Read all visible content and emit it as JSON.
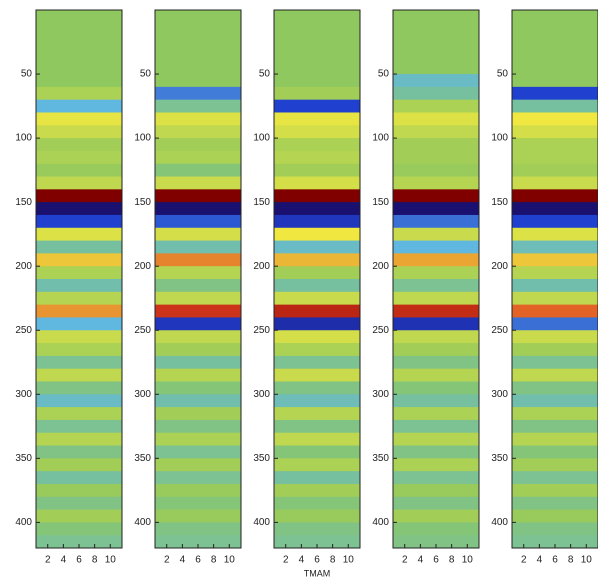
{
  "chart_data": [
    {
      "type": "heatmap",
      "ylim": [
        0,
        420
      ],
      "yticks": [
        50,
        100,
        150,
        200,
        250,
        300,
        350,
        400
      ],
      "xlim": [
        0.5,
        11.5
      ],
      "xticks": [
        2,
        4,
        6,
        8,
        10
      ],
      "zlim": [
        -3,
        3
      ],
      "colormap": [
        "#1a1070",
        "#2040d0",
        "#60b8e0",
        "#8ec85e",
        "#f0e840",
        "#e04020",
        "#800000"
      ],
      "bins": [
        0,
        10,
        20,
        30,
        40,
        50,
        60,
        70,
        80,
        90,
        100,
        110,
        120,
        130,
        140,
        150,
        160,
        170,
        180,
        190,
        200,
        210,
        220,
        230,
        240,
        250,
        260,
        270,
        280,
        290,
        300,
        310,
        320,
        330,
        340,
        350,
        360,
        370,
        380,
        390,
        400,
        410,
        420
      ],
      "z": [
        0,
        0,
        0,
        0,
        0,
        0,
        0.3,
        -1,
        0.9,
        0.6,
        0.2,
        0.3,
        0.1,
        0.5,
        3,
        -3,
        -2,
        0.8,
        -0.5,
        1.2,
        0.3,
        -0.6,
        0.4,
        1.5,
        -1,
        0.6,
        0.3,
        -0.4,
        0.5,
        -0.3,
        -0.8,
        0.3,
        -0.4,
        0.4,
        -0.3,
        0.2,
        -0.5,
        0.1,
        -0.3,
        0.2,
        -0.2,
        -0.4
      ]
    },
    {
      "type": "heatmap",
      "ylim": [
        0,
        420
      ],
      "yticks": [
        50,
        100,
        150,
        200,
        250,
        300,
        350,
        400
      ],
      "xlim": [
        0.5,
        11.5
      ],
      "xticks": [
        2,
        4,
        6,
        8,
        10
      ],
      "zlim": [
        -3,
        3
      ],
      "colormap": [
        "#1a1070",
        "#2040d0",
        "#60b8e0",
        "#8ec85e",
        "#f0e840",
        "#e04020",
        "#800000"
      ],
      "bins": [
        0,
        10,
        20,
        30,
        40,
        50,
        60,
        70,
        80,
        90,
        100,
        110,
        120,
        130,
        140,
        150,
        160,
        170,
        180,
        190,
        200,
        210,
        220,
        230,
        240,
        250,
        260,
        270,
        280,
        290,
        300,
        310,
        320,
        330,
        340,
        350,
        360,
        370,
        380,
        390,
        400,
        410,
        420
      ],
      "z": [
        0,
        0,
        0,
        0,
        0,
        0,
        -1.5,
        -0.4,
        0.8,
        0.5,
        0.2,
        0.3,
        -0.2,
        0.6,
        3,
        -3,
        -1.8,
        0.7,
        -0.6,
        1.6,
        0.4,
        -0.3,
        0.5,
        2.2,
        -2.2,
        0.5,
        0.2,
        -0.5,
        0.4,
        -0.2,
        -0.6,
        0.2,
        -0.3,
        0.3,
        -0.4,
        0.2,
        -0.4,
        0.1,
        -0.2,
        0.1,
        -0.3,
        -0.4
      ]
    },
    {
      "type": "heatmap",
      "ylim": [
        0,
        420
      ],
      "yticks": [
        50,
        100,
        150,
        200,
        250,
        300,
        350,
        400
      ],
      "xlim": [
        0.5,
        11.5
      ],
      "xticks": [
        2,
        4,
        6,
        8,
        10
      ],
      "zlim": [
        -3,
        3
      ],
      "xlabel": "TMAM",
      "colormap": [
        "#1a1070",
        "#2040d0",
        "#60b8e0",
        "#8ec85e",
        "#f0e840",
        "#e04020",
        "#800000"
      ],
      "bins": [
        0,
        10,
        20,
        30,
        40,
        50,
        60,
        70,
        80,
        90,
        100,
        110,
        120,
        130,
        140,
        150,
        160,
        170,
        180,
        190,
        200,
        210,
        220,
        230,
        240,
        250,
        260,
        270,
        280,
        290,
        300,
        310,
        320,
        330,
        340,
        350,
        360,
        370,
        380,
        390,
        400,
        410,
        420
      ],
      "z": [
        0,
        0,
        0,
        0,
        0,
        0,
        0.2,
        -2,
        0.9,
        0.7,
        0.3,
        0.4,
        0.2,
        0.7,
        3,
        -3,
        -2.2,
        1,
        -0.8,
        1.3,
        0.2,
        -0.5,
        0.6,
        2.4,
        -2.4,
        0.7,
        0.3,
        -0.4,
        0.6,
        -0.3,
        -0.7,
        0.4,
        -0.3,
        0.5,
        -0.2,
        0.3,
        -0.5,
        0.2,
        -0.2,
        0.1,
        -0.3,
        -0.4
      ]
    },
    {
      "type": "heatmap",
      "ylim": [
        0,
        420
      ],
      "yticks": [
        50,
        100,
        150,
        200,
        250,
        300,
        350,
        400
      ],
      "xlim": [
        0.5,
        11.5
      ],
      "xticks": [
        2,
        4,
        6,
        8,
        10
      ],
      "zlim": [
        -3,
        3
      ],
      "colormap": [
        "#1a1070",
        "#2040d0",
        "#60b8e0",
        "#8ec85e",
        "#f0e840",
        "#e04020",
        "#800000"
      ],
      "bins": [
        0,
        10,
        20,
        30,
        40,
        50,
        60,
        70,
        80,
        90,
        100,
        110,
        120,
        130,
        140,
        150,
        160,
        170,
        180,
        190,
        200,
        210,
        220,
        230,
        240,
        250,
        260,
        270,
        280,
        290,
        300,
        310,
        320,
        330,
        340,
        350,
        360,
        370,
        380,
        390,
        400,
        410,
        420
      ],
      "z": [
        0,
        0,
        0,
        0,
        0,
        -0.8,
        -0.5,
        0.3,
        0.8,
        0.5,
        0.2,
        0.2,
        0.1,
        0.4,
        3,
        -3,
        -1.6,
        0.6,
        -1,
        1.4,
        0.3,
        -0.4,
        0.5,
        2.3,
        -2.3,
        0.5,
        0.2,
        -0.3,
        0.4,
        -0.2,
        -0.5,
        0.3,
        -0.4,
        0.4,
        -0.3,
        0.3,
        -0.4,
        0.1,
        -0.3,
        0.2,
        -0.2,
        -0.3
      ]
    },
    {
      "type": "heatmap",
      "ylim": [
        0,
        420
      ],
      "yticks": [
        50,
        100,
        150,
        200,
        250,
        300,
        350,
        400
      ],
      "xlim": [
        0.5,
        11.5
      ],
      "xticks": [
        2,
        4,
        6,
        8,
        10
      ],
      "zlim": [
        -3,
        3
      ],
      "colormap": [
        "#1a1070",
        "#2040d0",
        "#60b8e0",
        "#8ec85e",
        "#f0e840",
        "#e04020",
        "#800000"
      ],
      "bins": [
        0,
        10,
        20,
        30,
        40,
        50,
        60,
        70,
        80,
        90,
        100,
        110,
        120,
        130,
        140,
        150,
        160,
        170,
        180,
        190,
        200,
        210,
        220,
        230,
        240,
        250,
        260,
        270,
        280,
        290,
        300,
        310,
        320,
        330,
        340,
        350,
        360,
        370,
        380,
        390,
        400,
        410,
        420
      ],
      "z": [
        0,
        0,
        0,
        0,
        0,
        0,
        -2,
        -0.5,
        1,
        0.7,
        0.3,
        0.3,
        0.2,
        0.6,
        3,
        -3,
        -2,
        0.8,
        -0.7,
        1.2,
        0.4,
        -0.6,
        0.5,
        1.8,
        -1.6,
        0.6,
        0.2,
        -0.4,
        0.5,
        -0.3,
        -0.6,
        0.3,
        -0.3,
        0.4,
        -0.2,
        0.2,
        -0.4,
        0.2,
        -0.3,
        0.1,
        -0.3,
        -0.4
      ]
    }
  ]
}
